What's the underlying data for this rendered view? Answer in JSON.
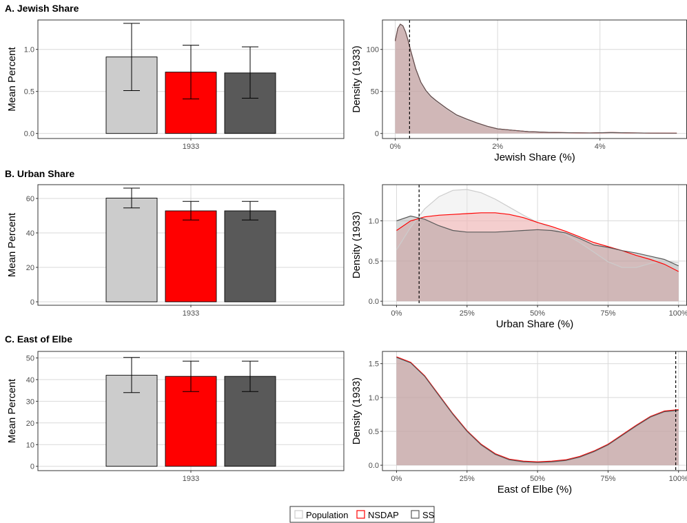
{
  "colors": {
    "population_fill": "#cccccc",
    "nsdap_fill": "#ff0000",
    "ss_fill": "#595959",
    "population_line": "#cccccc",
    "nsdap_line": "#ff0000",
    "ss_line": "#595959",
    "grid": "#d9d9d9",
    "density_fill": "#c99494"
  },
  "legend": {
    "items": [
      {
        "label": "Population",
        "color": "#cccccc"
      },
      {
        "label": "NSDAP",
        "color": "#ff0000"
      },
      {
        "label": "SS",
        "color": "#595959"
      }
    ],
    "position": "bottom"
  },
  "chart_data": [
    {
      "type": "bar",
      "title": "A. Jewish Share",
      "ylabel": "Mean Percent",
      "xlabel": "",
      "categories": [
        "1933"
      ],
      "ylim": [
        -0.06,
        1.35
      ],
      "yticks": [
        0.0,
        0.5,
        1.0
      ],
      "ytick_labels": [
        "0.0",
        "0.5",
        "1.0"
      ],
      "series": [
        {
          "name": "Population",
          "values": [
            0.91
          ],
          "error_low": [
            0.51
          ],
          "error_high": [
            1.31
          ]
        },
        {
          "name": "NSDAP",
          "values": [
            0.73
          ],
          "error_low": [
            0.41
          ],
          "error_high": [
            1.05
          ]
        },
        {
          "name": "SS",
          "values": [
            0.72
          ],
          "error_low": [
            0.42
          ],
          "error_high": [
            1.03
          ]
        }
      ],
      "grid": true
    },
    {
      "type": "area",
      "title": "",
      "ylabel": "Density (1933)",
      "xlabel": "Jewish Share (%)",
      "xlim": [
        -0.25,
        5.7
      ],
      "ylim": [
        -6,
        135
      ],
      "xticks": [
        0,
        2,
        4
      ],
      "xtick_labels": [
        "0%",
        "2%",
        "4%"
      ],
      "yticks": [
        0,
        50,
        100
      ],
      "ytick_labels": [
        "0",
        "50",
        "100"
      ],
      "x": [
        0,
        0.05,
        0.1,
        0.15,
        0.2,
        0.25,
        0.3,
        0.35,
        0.4,
        0.5,
        0.6,
        0.7,
        0.8,
        1.0,
        1.2,
        1.4,
        1.6,
        1.8,
        2.0,
        2.3,
        2.6,
        3.0,
        3.4,
        3.8,
        4.2,
        4.6,
        5.0,
        5.5
      ],
      "series": [
        {
          "name": "Population",
          "values": [
            110,
            124,
            129,
            127,
            120,
            110,
            98,
            87,
            76,
            60,
            50,
            43,
            38,
            29,
            21,
            16,
            12,
            8,
            5,
            3.5,
            2,
            1.2,
            0.8,
            0.5,
            1.0,
            0.6,
            0.4,
            0.3
          ]
        },
        {
          "name": "NSDAP",
          "values": [
            110,
            125,
            130,
            128,
            121,
            111,
            99,
            88,
            77,
            61,
            51,
            44,
            39,
            30,
            22,
            17,
            12.5,
            8.5,
            5.5,
            3.8,
            2.2,
            1.3,
            0.9,
            0.6,
            1.1,
            0.7,
            0.4,
            0.3
          ]
        },
        {
          "name": "SS",
          "values": [
            110,
            125,
            130,
            128,
            121,
            111,
            99,
            88,
            77,
            61,
            51,
            44,
            39,
            30,
            22,
            17,
            12.5,
            8.5,
            5.5,
            3.8,
            2.2,
            1.3,
            0.9,
            0.6,
            1.1,
            0.7,
            0.4,
            0.3
          ]
        }
      ],
      "vline": 0.28,
      "grid": true
    },
    {
      "type": "bar",
      "title": "B. Urban Share",
      "ylabel": "Mean Percent",
      "xlabel": "",
      "categories": [
        "1933"
      ],
      "ylim": [
        -2,
        68
      ],
      "yticks": [
        0,
        20,
        40,
        60
      ],
      "ytick_labels": [
        "0",
        "20",
        "40",
        "60"
      ],
      "series": [
        {
          "name": "Population",
          "values": [
            60.2
          ],
          "error_low": [
            54.5
          ],
          "error_high": [
            66.0
          ]
        },
        {
          "name": "NSDAP",
          "values": [
            52.8
          ],
          "error_low": [
            47.5
          ],
          "error_high": [
            58.3
          ]
        },
        {
          "name": "SS",
          "values": [
            52.8
          ],
          "error_low": [
            47.5
          ],
          "error_high": [
            58.3
          ]
        }
      ],
      "grid": true
    },
    {
      "type": "area",
      "title": "",
      "ylabel": "Density (1933)",
      "xlabel": "Urban Share (%)",
      "xlim": [
        -0.05,
        1.03
      ],
      "ylim": [
        -0.05,
        1.45
      ],
      "xticks": [
        0,
        0.25,
        0.5,
        0.75,
        1.0
      ],
      "xtick_labels": [
        "0%",
        "25%",
        "50%",
        "75%",
        "100%"
      ],
      "yticks": [
        0,
        0.5,
        1.0
      ],
      "ytick_labels": [
        "0.0",
        "0.5",
        "1.0"
      ],
      "x": [
        0,
        0.05,
        0.1,
        0.15,
        0.2,
        0.25,
        0.3,
        0.35,
        0.4,
        0.45,
        0.5,
        0.55,
        0.6,
        0.65,
        0.7,
        0.75,
        0.8,
        0.85,
        0.9,
        0.95,
        1.0
      ],
      "series": [
        {
          "name": "Population",
          "values": [
            0.64,
            0.92,
            1.15,
            1.3,
            1.38,
            1.39,
            1.35,
            1.27,
            1.17,
            1.07,
            0.98,
            0.91,
            0.83,
            0.73,
            0.61,
            0.49,
            0.42,
            0.42,
            0.47,
            0.5,
            0.48
          ]
        },
        {
          "name": "NSDAP",
          "values": [
            0.88,
            1.0,
            1.05,
            1.07,
            1.08,
            1.09,
            1.1,
            1.1,
            1.08,
            1.04,
            0.98,
            0.93,
            0.87,
            0.8,
            0.73,
            0.68,
            0.63,
            0.57,
            0.52,
            0.46,
            0.37
          ]
        },
        {
          "name": "SS",
          "values": [
            1.0,
            1.06,
            1.02,
            0.94,
            0.88,
            0.86,
            0.86,
            0.86,
            0.87,
            0.88,
            0.89,
            0.88,
            0.85,
            0.78,
            0.7,
            0.67,
            0.63,
            0.6,
            0.56,
            0.52,
            0.44
          ]
        }
      ],
      "vline": 0.08,
      "grid": true
    },
    {
      "type": "bar",
      "title": "C. East of Elbe",
      "ylabel": "Mean Percent",
      "xlabel": "",
      "categories": [
        "1933"
      ],
      "ylim": [
        -2,
        53
      ],
      "yticks": [
        0,
        10,
        20,
        30,
        40,
        50
      ],
      "ytick_labels": [
        "0",
        "10",
        "20",
        "30",
        "40",
        "50"
      ],
      "series": [
        {
          "name": "Population",
          "values": [
            42
          ],
          "error_low": [
            34
          ],
          "error_high": [
            50.2
          ]
        },
        {
          "name": "NSDAP",
          "values": [
            41.5
          ],
          "error_low": [
            34.5
          ],
          "error_high": [
            48.5
          ]
        },
        {
          "name": "SS",
          "values": [
            41.5
          ],
          "error_low": [
            34.5
          ],
          "error_high": [
            48.5
          ]
        }
      ],
      "grid": true
    },
    {
      "type": "area",
      "title": "",
      "ylabel": "Density (1933)",
      "xlabel": "East of Elbe (%)",
      "xlim": [
        -0.05,
        1.03
      ],
      "ylim": [
        -0.08,
        1.68
      ],
      "xticks": [
        0,
        0.25,
        0.5,
        0.75,
        1.0
      ],
      "xtick_labels": [
        "0%",
        "25%",
        "50%",
        "75%",
        "100%"
      ],
      "yticks": [
        0,
        0.5,
        1.0,
        1.5
      ],
      "ytick_labels": [
        "0.0",
        "0.5",
        "1.0",
        "1.5"
      ],
      "x": [
        0,
        0.05,
        0.1,
        0.15,
        0.2,
        0.25,
        0.3,
        0.35,
        0.4,
        0.45,
        0.5,
        0.55,
        0.6,
        0.65,
        0.7,
        0.75,
        0.8,
        0.85,
        0.9,
        0.95,
        1.0
      ],
      "series": [
        {
          "name": "Population",
          "values": [
            1.58,
            1.5,
            1.3,
            1.03,
            0.75,
            0.5,
            0.3,
            0.16,
            0.08,
            0.05,
            0.04,
            0.05,
            0.07,
            0.12,
            0.2,
            0.3,
            0.44,
            0.58,
            0.71,
            0.79,
            0.81
          ]
        },
        {
          "name": "NSDAP",
          "values": [
            1.6,
            1.52,
            1.32,
            1.04,
            0.76,
            0.51,
            0.31,
            0.17,
            0.09,
            0.06,
            0.05,
            0.06,
            0.08,
            0.13,
            0.21,
            0.31,
            0.45,
            0.59,
            0.72,
            0.8,
            0.82
          ]
        },
        {
          "name": "SS",
          "values": [
            1.59,
            1.51,
            1.31,
            1.03,
            0.75,
            0.5,
            0.3,
            0.16,
            0.08,
            0.05,
            0.04,
            0.05,
            0.07,
            0.12,
            0.2,
            0.3,
            0.44,
            0.58,
            0.71,
            0.79,
            0.81
          ]
        }
      ],
      "vline": 0.99,
      "grid": true
    }
  ]
}
